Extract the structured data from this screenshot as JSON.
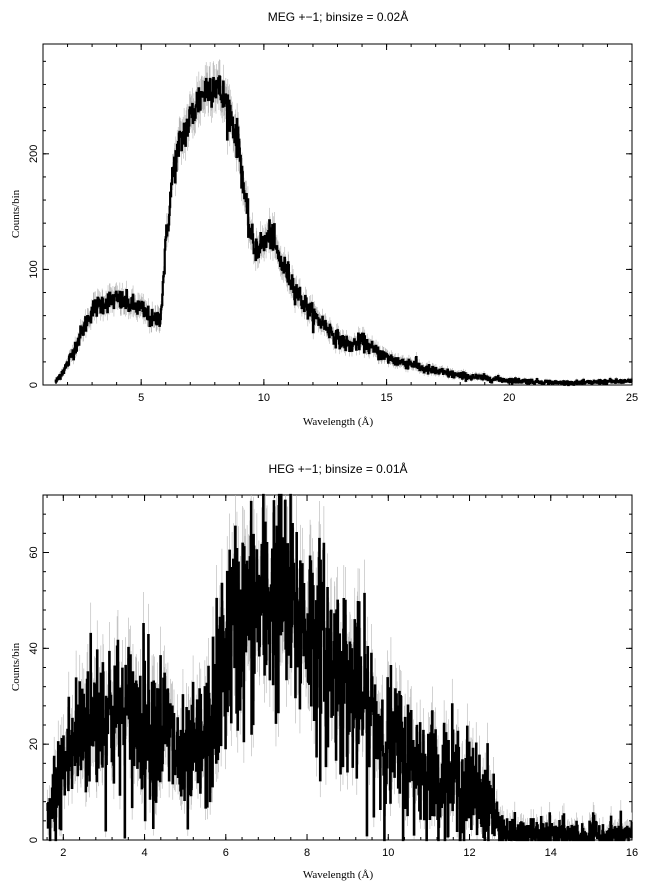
{
  "chart_data": [
    {
      "type": "line",
      "title": "MEG +−1; binsize = 0.02Å",
      "xlabel": "Wavelength (Å)",
      "ylabel": "Counts/bin",
      "xlim": [
        1.0,
        25.0
      ],
      "ylim": [
        0,
        295
      ],
      "xticks": [
        5,
        10,
        15,
        20,
        25
      ],
      "yticks": [
        0,
        100,
        200
      ],
      "grid": false,
      "style": "histogram with gray error bars",
      "series": [
        {
          "x": [
            1.5,
            2.0,
            2.5,
            3.0,
            3.5,
            4.0,
            4.5,
            5.0,
            5.5,
            5.8,
            6.0,
            6.3,
            6.6,
            7.0,
            7.3,
            7.6,
            8.0,
            8.3,
            8.6,
            9.0,
            9.3,
            9.6,
            10.0,
            10.3,
            10.6,
            11.0,
            11.5,
            12.0,
            12.5,
            13.0,
            13.5,
            14.0,
            14.5,
            15.0,
            15.5,
            16.0,
            16.5,
            17.0,
            17.5,
            18.0,
            19.0,
            20.0,
            21.0,
            22.0,
            23.0,
            24.0,
            25.0
          ],
          "values": [
            2,
            18,
            42,
            65,
            72,
            74,
            70,
            66,
            55,
            60,
            120,
            185,
            210,
            230,
            245,
            255,
            262,
            250,
            238,
            205,
            148,
            118,
            122,
            132,
            110,
            95,
            75,
            60,
            52,
            40,
            34,
            38,
            30,
            24,
            20,
            19,
            14,
            12,
            10,
            8,
            6,
            4,
            3,
            2,
            2,
            3,
            3
          ]
        }
      ]
    },
    {
      "type": "line",
      "title": "HEG +−1; binsize = 0.01Å",
      "xlabel": "Wavelength (Å)",
      "ylabel": "Counts/bin",
      "xlim": [
        1.5,
        16.0
      ],
      "ylim": [
        0,
        72
      ],
      "xticks": [
        2,
        4,
        6,
        8,
        10,
        12,
        14,
        16
      ],
      "yticks": [
        0,
        20,
        40,
        60
      ],
      "grid": false,
      "style": "histogram with gray error bars",
      "series": [
        {
          "x": [
            1.6,
            2.0,
            2.5,
            3.0,
            3.5,
            4.0,
            4.5,
            5.0,
            5.3,
            5.6,
            6.0,
            6.3,
            6.6,
            7.0,
            7.3,
            7.6,
            8.0,
            8.5,
            9.0,
            9.5,
            10.0,
            10.5,
            11.0,
            11.5,
            12.0,
            12.5,
            12.7,
            13.0,
            13.5,
            14.0,
            14.5,
            15.0,
            15.5,
            16.0
          ],
          "values": [
            3,
            15,
            24,
            27,
            25,
            25,
            23,
            14,
            18,
            22,
            40,
            45,
            47,
            50,
            52,
            47,
            45,
            38,
            33,
            27,
            20,
            17,
            14,
            13,
            11,
            8,
            3,
            1,
            1,
            1,
            1,
            1,
            1,
            1
          ]
        }
      ]
    }
  ]
}
